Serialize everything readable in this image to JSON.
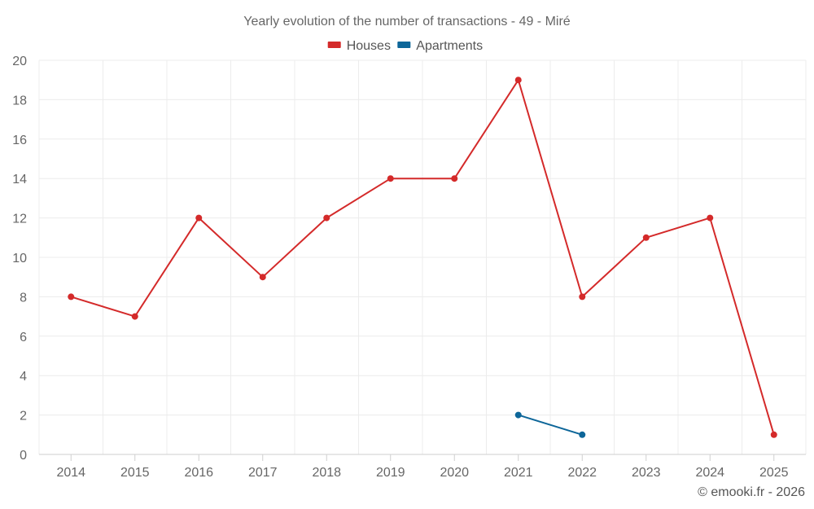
{
  "chart_data": {
    "type": "line",
    "title": "Yearly evolution of the number of transactions - 49 - Miré",
    "categories": [
      "2014",
      "2015",
      "2016",
      "2017",
      "2018",
      "2019",
      "2020",
      "2021",
      "2022",
      "2023",
      "2024",
      "2025"
    ],
    "ylim": [
      0,
      20
    ],
    "yticks": [
      0,
      2,
      4,
      6,
      8,
      10,
      12,
      14,
      16,
      18,
      20
    ],
    "grid": true,
    "legend_position": "top-center",
    "series": [
      {
        "name": "Houses",
        "color": "#d42a2a",
        "values": [
          8,
          7,
          12,
          9,
          12,
          14,
          14,
          19,
          8,
          11,
          12,
          1
        ]
      },
      {
        "name": "Apartments",
        "color": "#0d6699",
        "values": [
          null,
          null,
          null,
          null,
          null,
          null,
          null,
          2,
          1,
          null,
          null,
          null
        ]
      }
    ],
    "xlabel": "",
    "ylabel": "",
    "credit": "© emooki.fr - 2026"
  }
}
